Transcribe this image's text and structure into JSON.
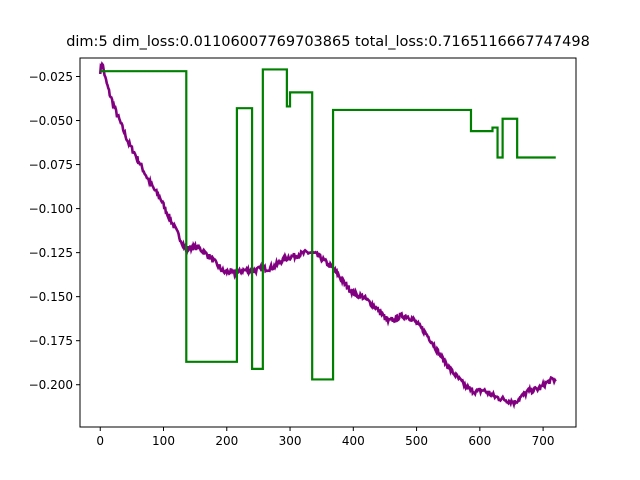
{
  "chart_data": {
    "type": "line",
    "title": "dim:5 dim_loss:0.01106007769703865 total_loss:0.7165116667747498",
    "xlabel": "",
    "ylabel": "",
    "xlim": [
      -32,
      752
    ],
    "ylim": [
      -0.224,
      -0.0145
    ],
    "grid": false,
    "x_ticks": [
      0,
      100,
      200,
      300,
      400,
      500,
      600,
      700
    ],
    "x_tick_labels": [
      "0",
      "100",
      "200",
      "300",
      "400",
      "500",
      "600",
      "700"
    ],
    "y_ticks": [
      -0.025,
      -0.05,
      -0.075,
      -0.1,
      -0.125,
      -0.15,
      -0.175,
      -0.2
    ],
    "y_tick_labels": [
      "−0.025",
      "−0.050",
      "−0.075",
      "−0.100",
      "−0.125",
      "−0.150",
      "−0.175",
      "−0.200"
    ],
    "series": [
      {
        "color": "#800080",
        "kind": "noisy",
        "x": [
          0,
          3,
          8,
          15,
          25,
          35,
          45,
          55,
          65,
          75,
          85,
          95,
          105,
          115,
          125,
          135,
          145,
          155,
          165,
          175,
          185,
          195,
          205,
          215,
          225,
          235,
          245,
          255,
          265,
          275,
          285,
          295,
          305,
          315,
          325,
          335,
          345,
          355,
          365,
          375,
          385,
          395,
          405,
          415,
          425,
          435,
          445,
          455,
          465,
          475,
          485,
          495,
          505,
          515,
          525,
          535,
          545,
          555,
          565,
          575,
          585,
          595,
          605,
          615,
          625,
          635,
          645,
          655,
          665,
          675,
          685,
          695,
          705,
          715,
          720
        ],
        "y": [
          -0.022,
          -0.017,
          -0.026,
          -0.035,
          -0.045,
          -0.054,
          -0.063,
          -0.069,
          -0.076,
          -0.083,
          -0.089,
          -0.094,
          -0.102,
          -0.109,
          -0.116,
          -0.123,
          -0.122,
          -0.122,
          -0.125,
          -0.128,
          -0.132,
          -0.136,
          -0.136,
          -0.137,
          -0.135,
          -0.135,
          -0.135,
          -0.134,
          -0.134,
          -0.133,
          -0.13,
          -0.128,
          -0.127,
          -0.126,
          -0.125,
          -0.125,
          -0.127,
          -0.13,
          -0.133,
          -0.137,
          -0.142,
          -0.146,
          -0.149,
          -0.15,
          -0.153,
          -0.156,
          -0.16,
          -0.164,
          -0.163,
          -0.161,
          -0.161,
          -0.163,
          -0.167,
          -0.171,
          -0.176,
          -0.182,
          -0.187,
          -0.192,
          -0.196,
          -0.2,
          -0.203,
          -0.204,
          -0.203,
          -0.205,
          -0.207,
          -0.208,
          -0.209,
          -0.21,
          -0.207,
          -0.204,
          -0.203,
          -0.202,
          -0.199,
          -0.197,
          -0.198
        ]
      },
      {
        "color": "#008000",
        "kind": "step",
        "x": [
          0,
          136,
          136,
          216,
          216,
          240,
          240,
          257,
          257,
          295,
          295,
          300,
          300,
          335,
          335,
          368,
          368,
          586,
          586,
          620,
          620,
          628,
          628,
          636,
          636,
          643,
          643,
          659,
          659,
          720
        ],
        "y": [
          -0.022,
          -0.022,
          -0.187,
          -0.187,
          -0.043,
          -0.043,
          -0.191,
          -0.191,
          -0.021,
          -0.021,
          -0.042,
          -0.042,
          -0.034,
          -0.034,
          -0.197,
          -0.197,
          -0.044,
          -0.044,
          -0.056,
          -0.056,
          -0.054,
          -0.054,
          -0.071,
          -0.071,
          -0.049,
          -0.049,
          -0.049,
          -0.049,
          -0.071,
          -0.071
        ]
      }
    ]
  }
}
